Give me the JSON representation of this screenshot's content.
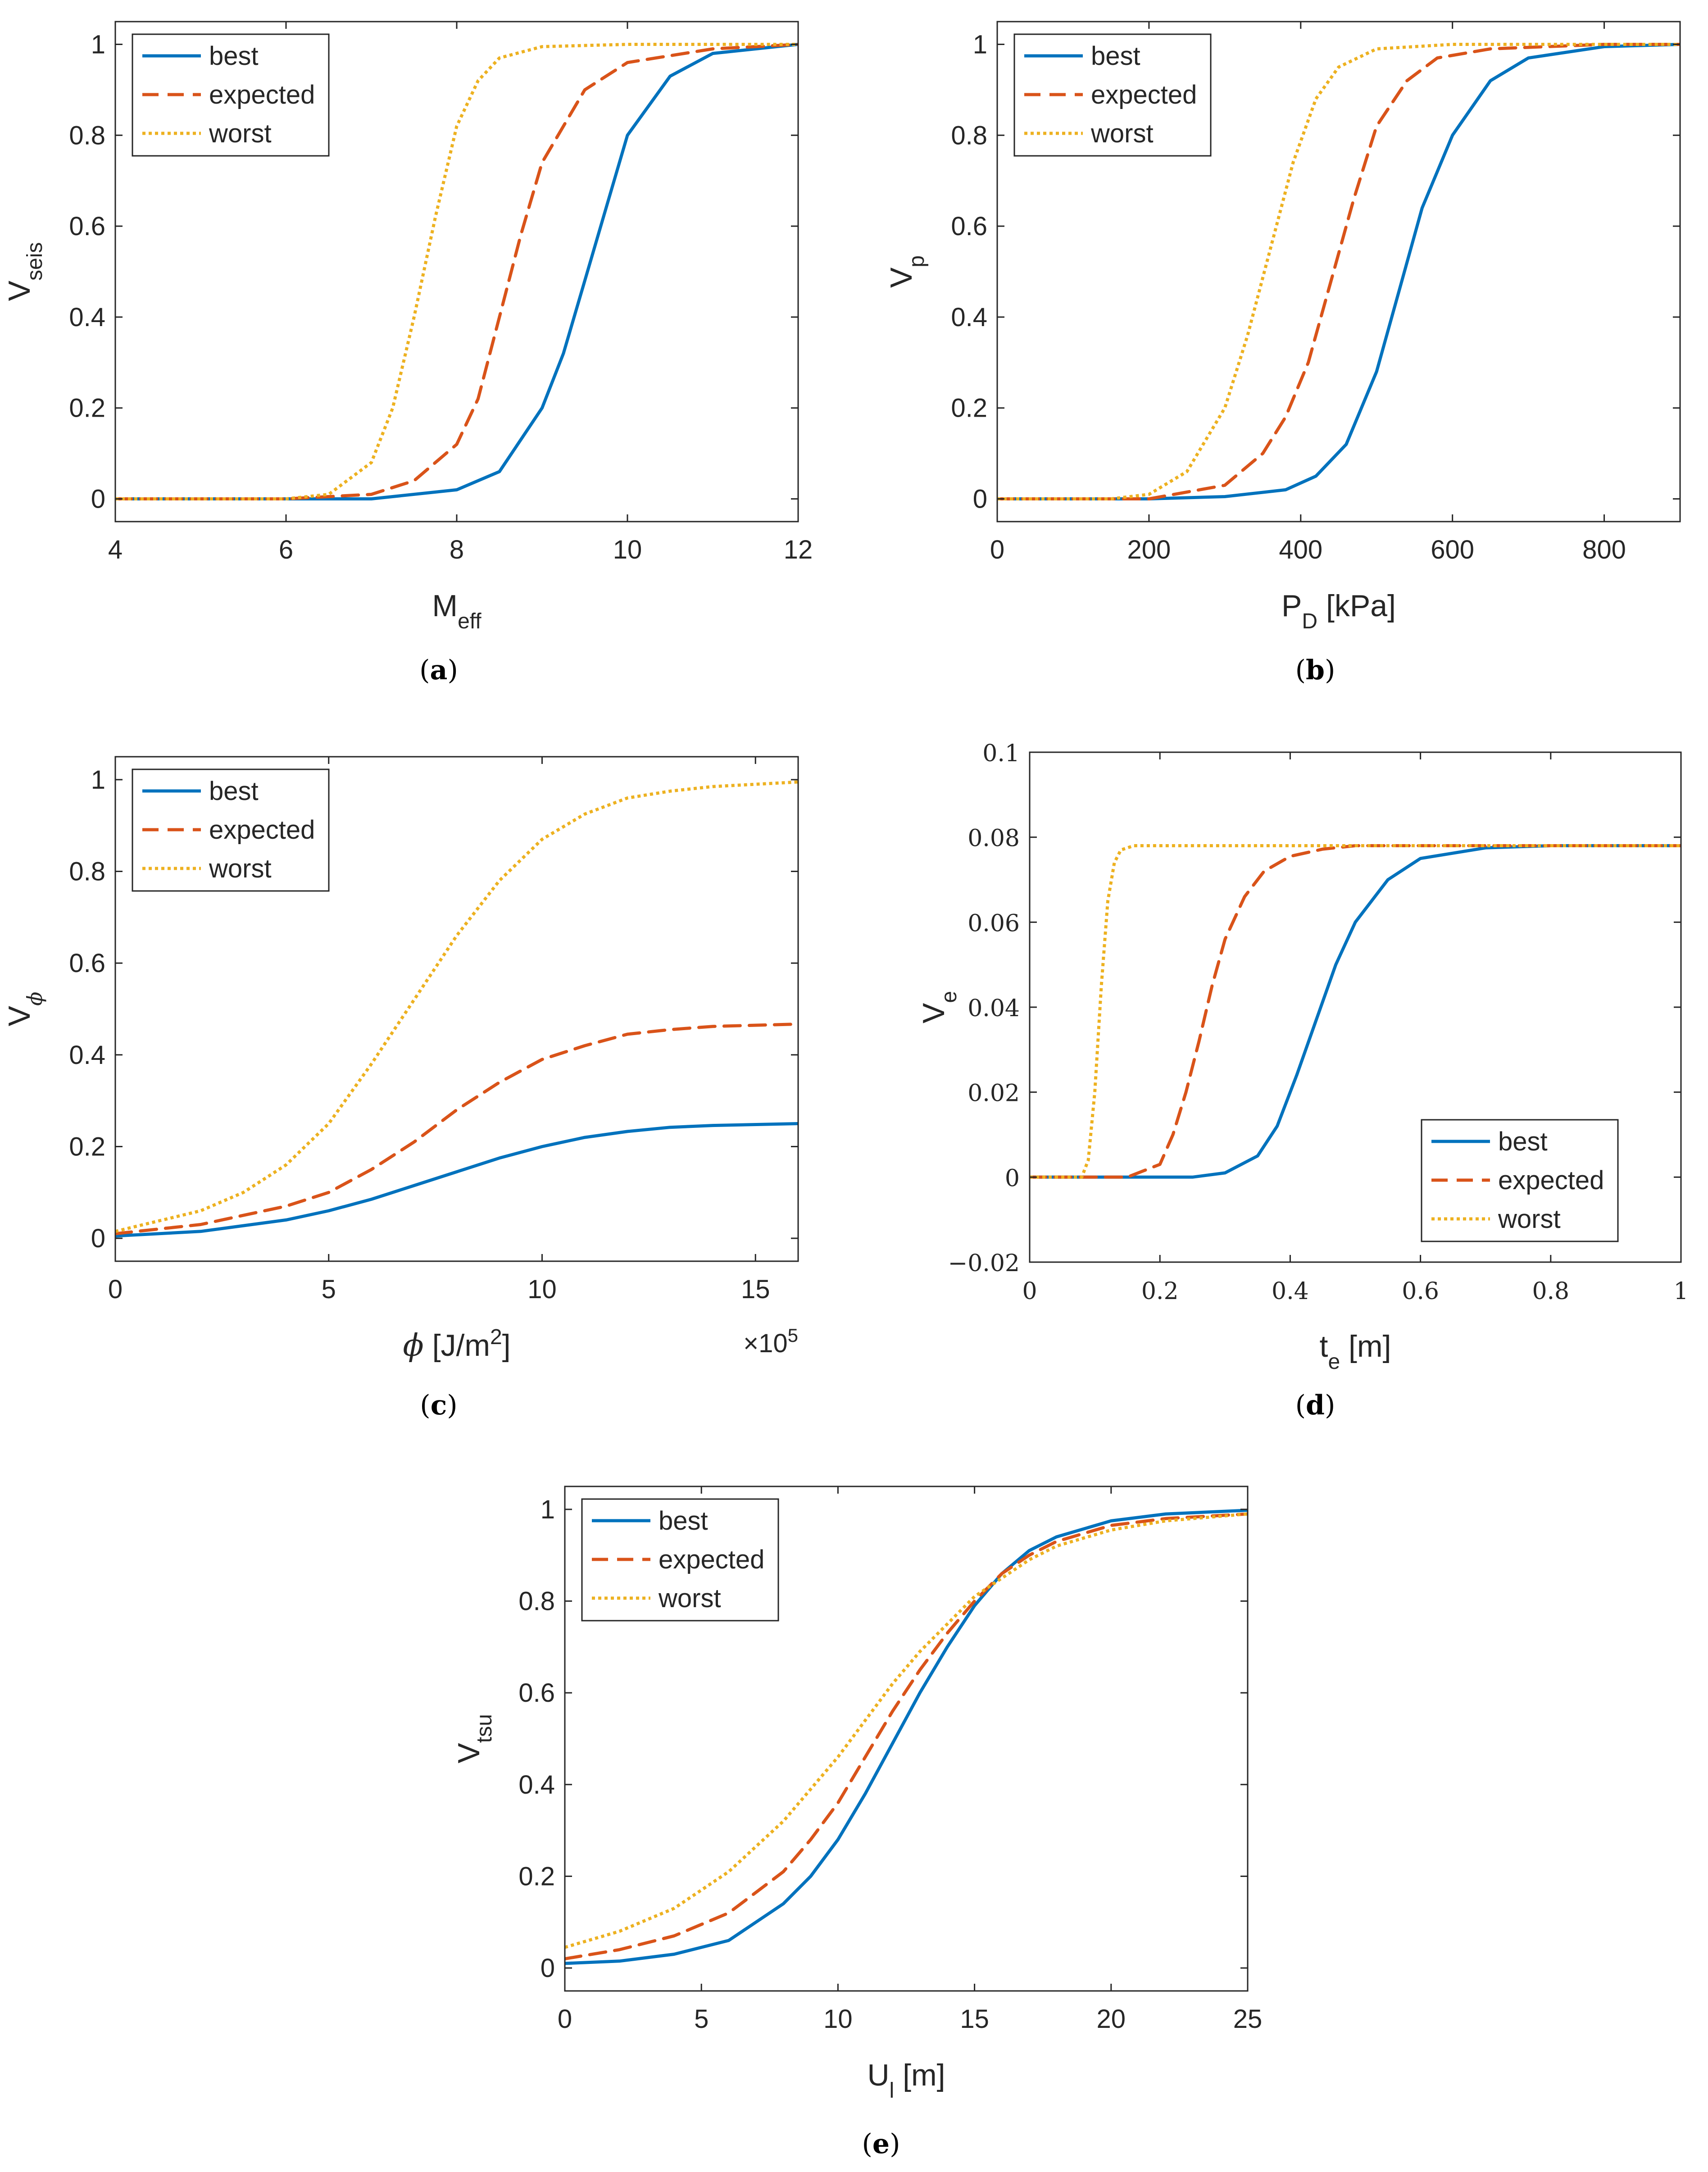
{
  "colors": {
    "best": "#0072BD",
    "expected": "#D95319",
    "worst": "#EDB120",
    "axis": "#262626"
  },
  "chart_data": [
    {
      "id": "a",
      "type": "line",
      "caption": "a",
      "xlabel": "M",
      "xlabel_sub": "eff",
      "ylabel": "V",
      "ylabel_sub": "seis",
      "xlim": [
        4,
        12
      ],
      "ylim": [
        -0.05,
        1.05
      ],
      "xticks": [
        4,
        6,
        8,
        10,
        12
      ],
      "xtick_labels": [
        "4",
        "6",
        "8",
        "10",
        "12"
      ],
      "yticks": [
        0,
        0.2,
        0.4,
        0.6,
        0.8,
        1
      ],
      "ytick_labels": [
        "0",
        "0.2",
        "0.4",
        "0.6",
        "0.8",
        "1"
      ],
      "legend_position": "top-left",
      "series": [
        {
          "name": "best",
          "style": "solid",
          "x": [
            4,
            6,
            7,
            8,
            8.5,
            9,
            9.25,
            9.5,
            9.75,
            10,
            10.5,
            11,
            12
          ],
          "y": [
            0,
            0,
            0,
            0.02,
            0.06,
            0.2,
            0.32,
            0.48,
            0.64,
            0.8,
            0.93,
            0.98,
            1.0
          ]
        },
        {
          "name": "expected",
          "style": "dashed",
          "x": [
            4,
            6,
            7,
            7.5,
            8,
            8.25,
            8.5,
            8.75,
            9,
            9.5,
            10,
            11,
            12
          ],
          "y": [
            0,
            0,
            0.01,
            0.04,
            0.12,
            0.22,
            0.4,
            0.58,
            0.74,
            0.9,
            0.96,
            0.99,
            1.0
          ]
        },
        {
          "name": "worst",
          "style": "dotted",
          "x": [
            4,
            6,
            6.5,
            7,
            7.25,
            7.5,
            7.75,
            8,
            8.25,
            8.5,
            9,
            10,
            12
          ],
          "y": [
            0,
            0,
            0.01,
            0.08,
            0.2,
            0.4,
            0.62,
            0.82,
            0.92,
            0.97,
            0.995,
            1.0,
            1.0
          ]
        }
      ]
    },
    {
      "id": "b",
      "type": "line",
      "caption": "b",
      "xlabel": "P",
      "xlabel_sub": "D",
      "xlabel_suffix": " [kPa]",
      "ylabel": "V",
      "ylabel_sub": "p",
      "xlim": [
        0,
        900
      ],
      "ylim": [
        -0.05,
        1.05
      ],
      "xticks": [
        0,
        200,
        400,
        600,
        800
      ],
      "xtick_labels": [
        "0",
        "200",
        "400",
        "600",
        "800"
      ],
      "yticks": [
        0,
        0.2,
        0.4,
        0.6,
        0.8,
        1
      ],
      "ytick_labels": [
        "0",
        "0.2",
        "0.4",
        "0.6",
        "0.8",
        "1"
      ],
      "legend_position": "top-left",
      "series": [
        {
          "name": "best",
          "style": "solid",
          "x": [
            0,
            200,
            300,
            380,
            420,
            460,
            500,
            530,
            560,
            600,
            650,
            700,
            800,
            900
          ],
          "y": [
            0,
            0,
            0.005,
            0.02,
            0.05,
            0.12,
            0.28,
            0.46,
            0.64,
            0.8,
            0.92,
            0.97,
            0.995,
            1.0
          ]
        },
        {
          "name": "expected",
          "style": "dashed",
          "x": [
            0,
            200,
            300,
            350,
            380,
            410,
            440,
            470,
            500,
            540,
            580,
            650,
            800,
            900
          ],
          "y": [
            0,
            0,
            0.03,
            0.1,
            0.18,
            0.3,
            0.48,
            0.66,
            0.82,
            0.92,
            0.97,
            0.99,
            1.0,
            1.0
          ]
        },
        {
          "name": "worst",
          "style": "dotted",
          "x": [
            0,
            150,
            200,
            250,
            300,
            330,
            360,
            390,
            420,
            450,
            500,
            600,
            900
          ],
          "y": [
            0,
            0,
            0.01,
            0.06,
            0.2,
            0.36,
            0.55,
            0.74,
            0.88,
            0.95,
            0.99,
            1.0,
            1.0
          ]
        }
      ]
    },
    {
      "id": "c",
      "type": "line",
      "caption": "c",
      "xlabel": "ϕ",
      "xlabel_suffix": " [J/m",
      "xlabel_sup": "2",
      "xlabel_end": "]",
      "ylabel": "V",
      "ylabel_sub": "ϕ",
      "x_multiplier": "×10",
      "x_multiplier_exp": "5",
      "xlim": [
        0,
        16
      ],
      "ylim": [
        -0.05,
        1.05
      ],
      "xticks": [
        0,
        5,
        10,
        15
      ],
      "xtick_labels": [
        "0",
        "5",
        "10",
        "15"
      ],
      "yticks": [
        0,
        0.2,
        0.4,
        0.6,
        0.8,
        1
      ],
      "ytick_labels": [
        "0",
        "0.2",
        "0.4",
        "0.6",
        "0.8",
        "1"
      ],
      "legend_position": "top-left",
      "series": [
        {
          "name": "best",
          "style": "solid",
          "x": [
            0,
            2,
            4,
            5,
            6,
            7,
            8,
            9,
            10,
            11,
            12,
            13,
            14,
            16
          ],
          "y": [
            0.005,
            0.015,
            0.04,
            0.06,
            0.085,
            0.115,
            0.145,
            0.175,
            0.2,
            0.22,
            0.233,
            0.242,
            0.246,
            0.25
          ]
        },
        {
          "name": "expected",
          "style": "dashed",
          "x": [
            0,
            2,
            4,
            5,
            6,
            7,
            8,
            9,
            10,
            11,
            12,
            13,
            14,
            16
          ],
          "y": [
            0.01,
            0.03,
            0.07,
            0.1,
            0.15,
            0.21,
            0.28,
            0.34,
            0.39,
            0.42,
            0.445,
            0.455,
            0.462,
            0.467
          ]
        },
        {
          "name": "worst",
          "style": "dotted",
          "x": [
            0,
            2,
            3,
            4,
            5,
            6,
            7,
            8,
            9,
            10,
            11,
            12,
            13,
            14,
            16
          ],
          "y": [
            0.015,
            0.06,
            0.1,
            0.16,
            0.25,
            0.38,
            0.52,
            0.66,
            0.78,
            0.87,
            0.925,
            0.96,
            0.975,
            0.985,
            0.995
          ]
        }
      ]
    },
    {
      "id": "d",
      "type": "line",
      "caption": "d",
      "xlabel": "t",
      "xlabel_sub": "e",
      "xlabel_suffix": " [m]",
      "ylabel": "V",
      "ylabel_sub": "e",
      "xlim": [
        0,
        1
      ],
      "ylim": [
        -0.02,
        0.1
      ],
      "xticks": [
        0,
        0.2,
        0.4,
        0.6,
        0.8,
        1
      ],
      "xtick_labels": [
        "0",
        "0.2",
        "0.4",
        "0.6",
        "0.8",
        "1"
      ],
      "yticks": [
        -0.02,
        0,
        0.02,
        0.04,
        0.06,
        0.08,
        0.1
      ],
      "ytick_labels": [
        "−0.02",
        "0",
        "0.02",
        "0.04",
        "0.06",
        "0.08",
        "0.1"
      ],
      "legend_position": "bottom-right",
      "series": [
        {
          "name": "best",
          "style": "solid",
          "x": [
            0,
            0.25,
            0.3,
            0.35,
            0.38,
            0.41,
            0.44,
            0.47,
            0.5,
            0.55,
            0.6,
            0.7,
            0.8,
            1
          ],
          "y": [
            0,
            0,
            0.001,
            0.005,
            0.012,
            0.024,
            0.037,
            0.05,
            0.06,
            0.07,
            0.075,
            0.0775,
            0.078,
            0.078
          ]
        },
        {
          "name": "expected",
          "style": "dashed",
          "x": [
            0,
            0.15,
            0.2,
            0.22,
            0.24,
            0.26,
            0.28,
            0.3,
            0.33,
            0.36,
            0.4,
            0.45,
            0.5,
            1
          ],
          "y": [
            0,
            0,
            0.003,
            0.01,
            0.02,
            0.032,
            0.045,
            0.056,
            0.066,
            0.072,
            0.0755,
            0.0772,
            0.078,
            0.078
          ]
        },
        {
          "name": "worst",
          "style": "dotted",
          "x": [
            0,
            0.08,
            0.09,
            0.1,
            0.11,
            0.12,
            0.13,
            0.14,
            0.16,
            0.2,
            1
          ],
          "y": [
            0,
            0,
            0.004,
            0.02,
            0.045,
            0.065,
            0.074,
            0.077,
            0.078,
            0.078,
            0.078
          ]
        }
      ]
    },
    {
      "id": "e",
      "type": "line",
      "caption": "e",
      "xlabel": "U",
      "xlabel_sub": "l",
      "xlabel_suffix": " [m]",
      "ylabel": "V",
      "ylabel_sub": "tsu",
      "xlim": [
        0,
        25
      ],
      "ylim": [
        -0.05,
        1.05
      ],
      "xticks": [
        0,
        5,
        10,
        15,
        20,
        25
      ],
      "xtick_labels": [
        "0",
        "5",
        "10",
        "15",
        "20",
        "25"
      ],
      "yticks": [
        0,
        0.2,
        0.4,
        0.6,
        0.8,
        1
      ],
      "ytick_labels": [
        "0",
        "0.2",
        "0.4",
        "0.6",
        "0.8",
        "1"
      ],
      "legend_position": "top-left",
      "series": [
        {
          "name": "best",
          "style": "solid",
          "x": [
            0,
            2,
            4,
            6,
            8,
            9,
            10,
            11,
            12,
            13,
            14,
            15,
            16,
            17,
            18,
            20,
            22,
            25
          ],
          "y": [
            0.01,
            0.015,
            0.03,
            0.06,
            0.14,
            0.2,
            0.28,
            0.38,
            0.49,
            0.6,
            0.7,
            0.79,
            0.86,
            0.91,
            0.94,
            0.975,
            0.99,
            0.998
          ]
        },
        {
          "name": "expected",
          "style": "dashed",
          "x": [
            0,
            2,
            4,
            6,
            8,
            9,
            10,
            11,
            12,
            13,
            14,
            15,
            16,
            17,
            18,
            20,
            22,
            25
          ],
          "y": [
            0.02,
            0.04,
            0.07,
            0.12,
            0.21,
            0.28,
            0.36,
            0.46,
            0.56,
            0.65,
            0.73,
            0.8,
            0.86,
            0.9,
            0.93,
            0.965,
            0.98,
            0.99
          ]
        },
        {
          "name": "worst",
          "style": "dotted",
          "x": [
            0,
            2,
            4,
            6,
            8,
            9,
            10,
            11,
            12,
            13,
            14,
            15,
            16,
            17,
            18,
            20,
            22,
            25
          ],
          "y": [
            0.045,
            0.08,
            0.13,
            0.21,
            0.32,
            0.39,
            0.46,
            0.54,
            0.62,
            0.69,
            0.75,
            0.81,
            0.85,
            0.89,
            0.92,
            0.955,
            0.975,
            0.99
          ]
        }
      ]
    }
  ]
}
